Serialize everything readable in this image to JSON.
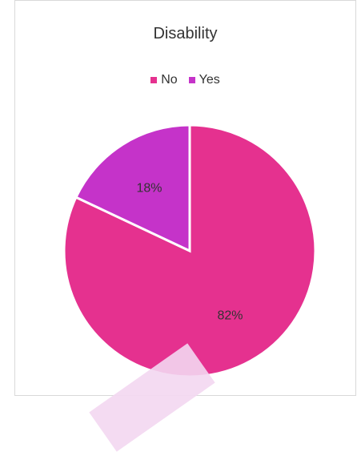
{
  "chart_data": {
    "type": "pie",
    "title": "Disability",
    "legend_position": "top",
    "slices": [
      {
        "label": "No",
        "value": 82,
        "value_label": "82%",
        "color": "#e5318f"
      },
      {
        "label": "Yes",
        "value": 18,
        "value_label": "18%",
        "color": "#c533c9"
      }
    ],
    "start_angle_deg": 0,
    "direction": "clockwise",
    "slice_border_color": "#ffffff"
  }
}
